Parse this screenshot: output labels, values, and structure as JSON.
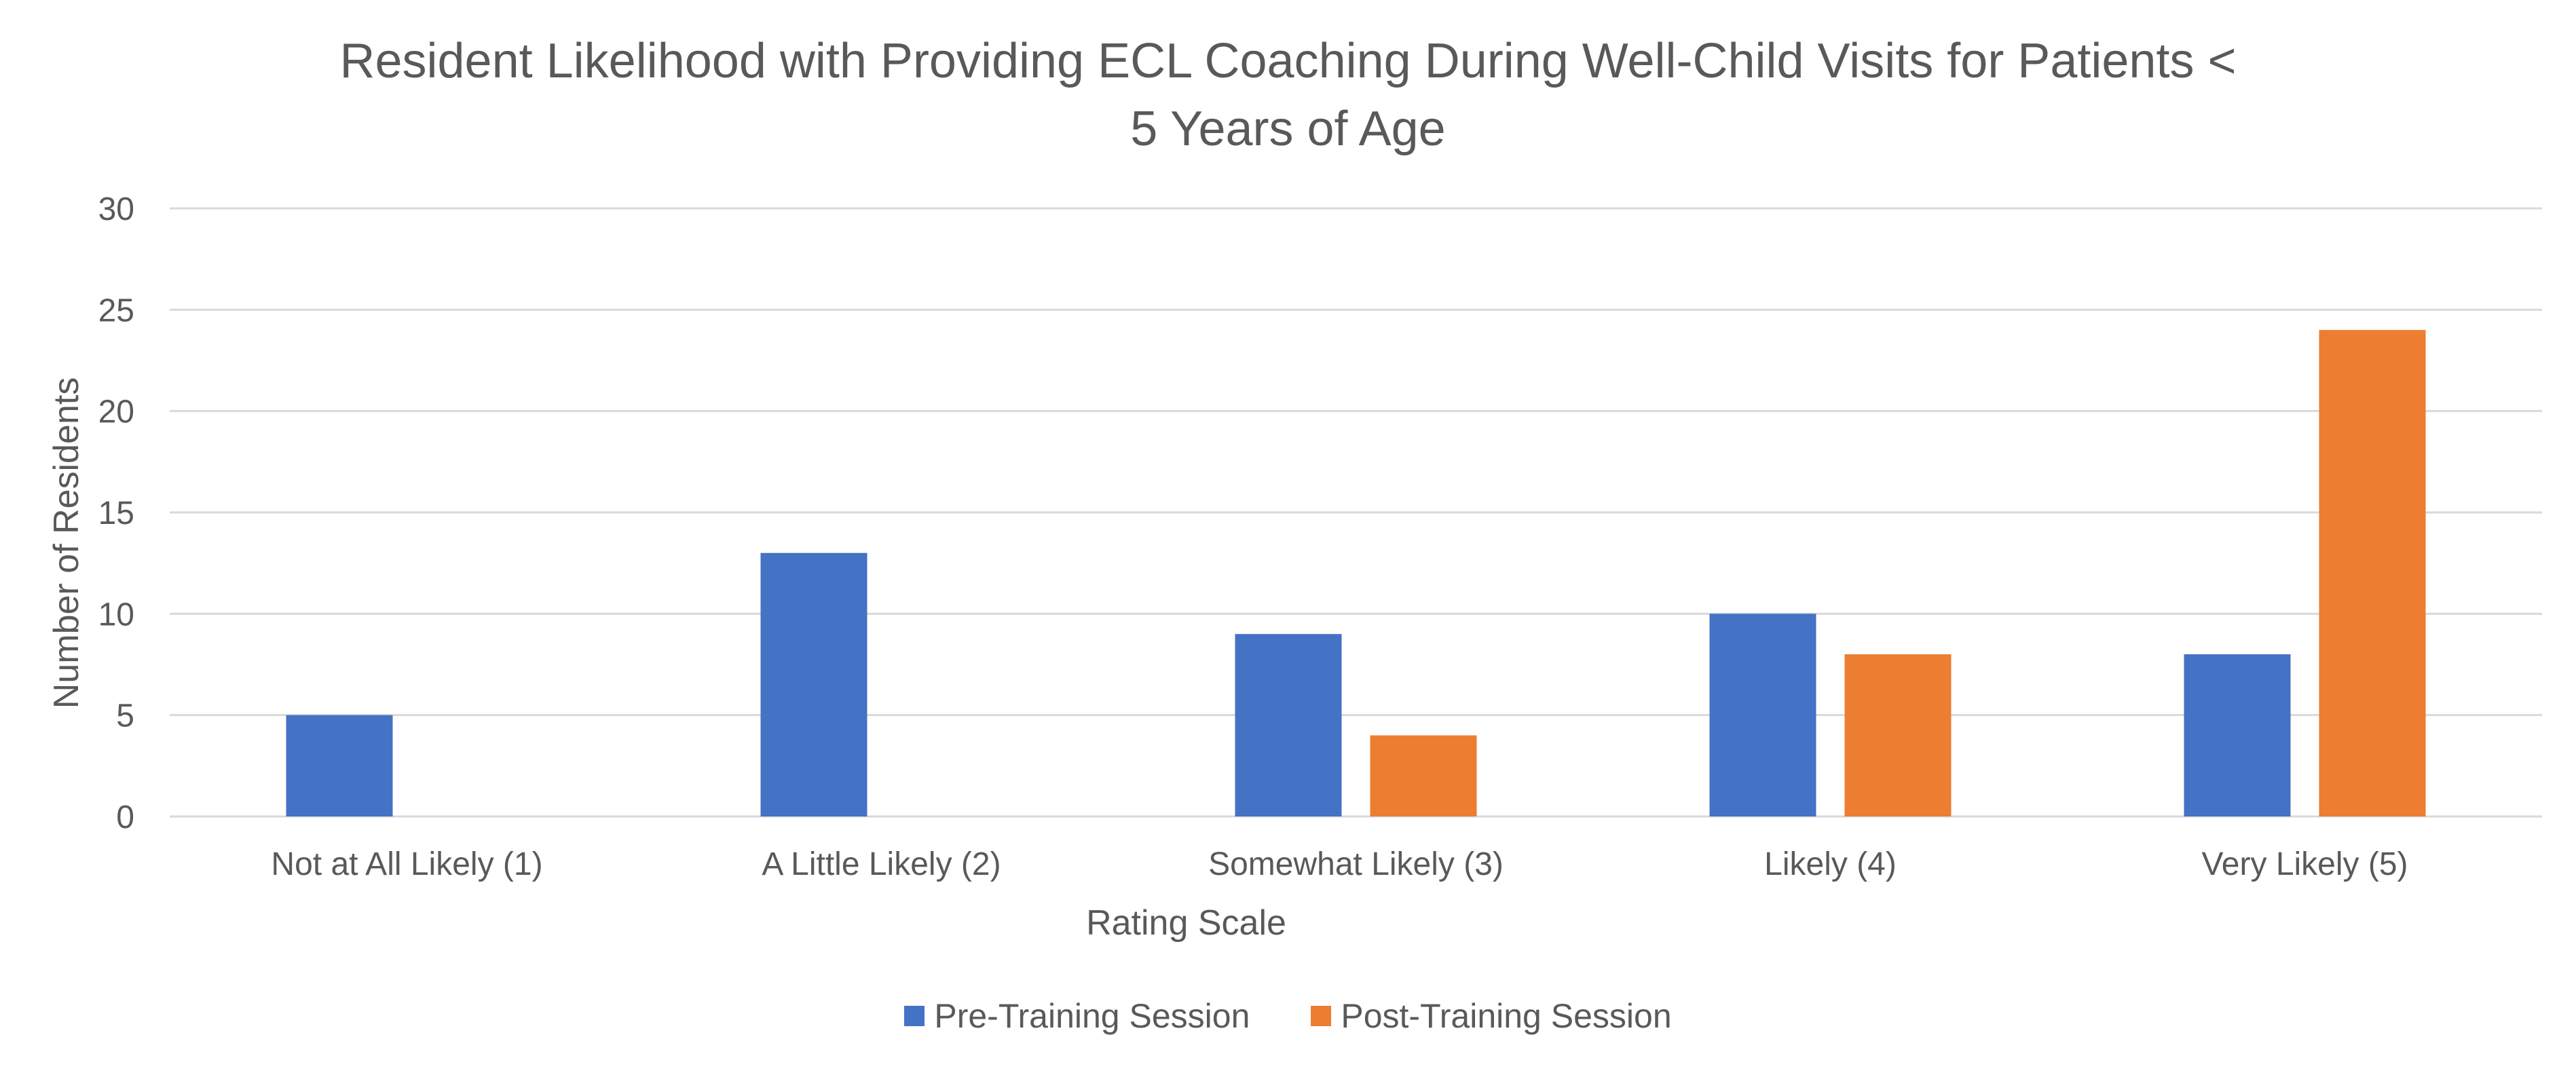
{
  "chart_data": {
    "type": "bar",
    "title_lines": [
      "Resident Likelihood with Providing ECL Coaching During Well-Child Visits for Patients <",
      "5 Years of Age"
    ],
    "xlabel": "Rating Scale",
    "ylabel": "Number of Residents",
    "ylim": [
      0,
      30
    ],
    "yticks": [
      0,
      5,
      10,
      15,
      20,
      25,
      30
    ],
    "grid": true,
    "legend_position": "bottom",
    "categories": [
      "Not at All Likely (1)",
      "A Little Likely (2)",
      "Somewhat Likely (3)",
      "Likely (4)",
      "Very Likely (5)"
    ],
    "series": [
      {
        "name": "Pre-Training Session",
        "color": "#4472C4",
        "values": [
          5,
          13,
          9,
          10,
          8
        ]
      },
      {
        "name": "Post-Training Session",
        "color": "#ED7D31",
        "values": [
          0,
          0,
          4,
          8,
          24
        ]
      }
    ]
  }
}
